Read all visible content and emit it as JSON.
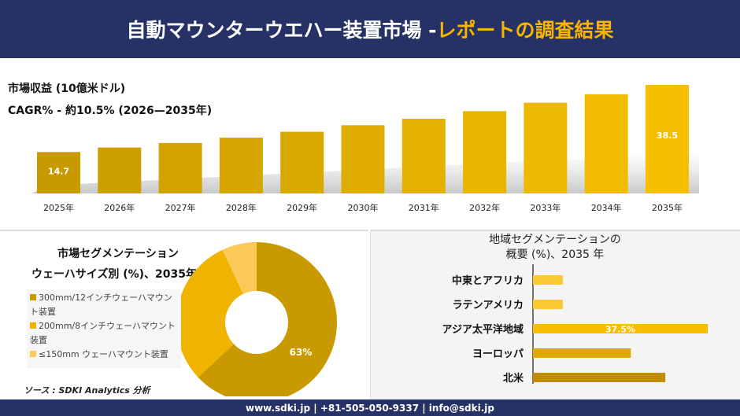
{
  "header": {
    "title_main": "自動マウンターウエハー装置市場 - ",
    "title_highlight": "レポートの調査結果"
  },
  "market": {
    "label": "市場収益 (10億米ドル)",
    "cagr": "CAGR% - 約10.5% (2026—2035年)"
  },
  "colors": {
    "navy": "#263166",
    "gold_dark": "#c89a00",
    "gold": "#f2b900",
    "gold_light": "#fcc95a"
  },
  "chart_data": [
    {
      "type": "bar",
      "categories": [
        "2025年",
        "2026年",
        "2027年",
        "2028年",
        "2029年",
        "2030年",
        "2031年",
        "2032年",
        "2033年",
        "2034年",
        "2035年"
      ],
      "values": [
        14.7,
        16.3,
        17.9,
        19.8,
        21.9,
        24.2,
        26.5,
        29.2,
        32.2,
        35.2,
        38.5
      ],
      "data_labels": {
        "0": "14.7",
        "10": "38.5"
      },
      "ylim": [
        0,
        40
      ]
    },
    {
      "type": "pie",
      "title": "市場セグメンテーション",
      "subtitle": "ウェーハサイズ別 (%)、2035年",
      "categories": [
        "300mm/12インチウェーハマウント装置",
        "200mm/8インチウェーハマウント装置",
        "≤150mm ウェーハマウント装置"
      ],
      "values": [
        63,
        30,
        7
      ],
      "data_labels": {
        "0": "63%"
      },
      "colors": [
        "#c89a00",
        "#f0b400",
        "#fcc95a"
      ]
    },
    {
      "type": "bar",
      "orientation": "horizontal",
      "title": "地域セグメンテーションの",
      "subtitle": "概要 (%)、2035 年",
      "categories": [
        "中東とアフリカ",
        "ラテンアメリカ",
        "アジア太平洋地域",
        "ヨーロッパ",
        "北米"
      ],
      "values": [
        6.4,
        6.4,
        37.5,
        21,
        28.4
      ],
      "data_labels": {
        "2": "37.5%"
      },
      "colors": [
        "#fbc733",
        "#fbc733",
        "#f7be00",
        "#e0a900",
        "#c08e00"
      ]
    }
  ],
  "source": "ソース : SDKI Analytics 分析",
  "footer": "www.sdki.jp | +81-505-050-9337 | info@sdki.jp"
}
